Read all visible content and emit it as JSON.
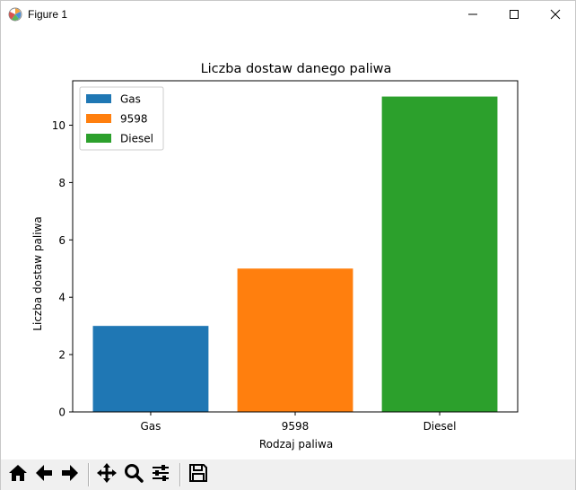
{
  "window": {
    "title": "Figure 1"
  },
  "title_buttons": {
    "minimize": "minimize-icon",
    "maximize": "maximize-icon",
    "close": "close-icon"
  },
  "toolbar": {
    "buttons": [
      {
        "name": "home-button",
        "icon": "home-icon"
      },
      {
        "name": "back-button",
        "icon": "arrow-left-icon"
      },
      {
        "name": "forward-button",
        "icon": "arrow-right-icon"
      },
      {
        "name": "pan-button",
        "icon": "move-icon"
      },
      {
        "name": "zoom-button",
        "icon": "magnifier-icon"
      },
      {
        "name": "configure-subplots-button",
        "icon": "sliders-icon"
      },
      {
        "name": "save-button",
        "icon": "floppy-disk-icon"
      }
    ]
  },
  "chart_data": {
    "type": "bar",
    "title": "Liczba dostaw danego paliwa",
    "xlabel": "Rodzaj paliwa",
    "ylabel": "Liczba dostaw paliwa",
    "categories": [
      "Gas",
      "9598",
      "Diesel"
    ],
    "values": [
      3,
      5,
      11
    ],
    "colors": [
      "#1f77b4",
      "#ff7f0e",
      "#2ca02c"
    ],
    "ylim": [
      0,
      11.55
    ],
    "yticks": [
      0,
      2,
      4,
      6,
      8,
      10
    ],
    "legend": {
      "position": "top-left",
      "entries": [
        {
          "label": "Gas",
          "color": "#1f77b4"
        },
        {
          "label": "9598",
          "color": "#ff7f0e"
        },
        {
          "label": "Diesel",
          "color": "#2ca02c"
        }
      ]
    },
    "grid": false
  }
}
